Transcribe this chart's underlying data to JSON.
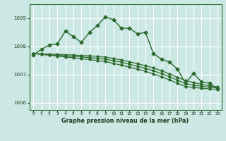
{
  "title": "Graphe pression niveau de la mer (hPa)",
  "bg_color": "#cce8e4",
  "grid_color": "#ffffff",
  "line_color": "#2d6a2d",
  "ylim": [
    1005.75,
    1009.5
  ],
  "yticks": [
    1006,
    1007,
    1008,
    1009
  ],
  "xlim": [
    -0.5,
    23.5
  ],
  "xticks": [
    0,
    1,
    2,
    3,
    4,
    5,
    6,
    7,
    8,
    9,
    10,
    11,
    12,
    13,
    14,
    15,
    16,
    17,
    18,
    19,
    20,
    21,
    22,
    23
  ],
  "series_main": [
    1007.7,
    1007.9,
    1008.05,
    1008.1,
    1008.55,
    1008.35,
    1008.15,
    1008.5,
    1008.75,
    1009.05,
    1008.95,
    1008.65,
    1008.65,
    1008.45,
    1008.5,
    1007.75,
    1007.55,
    1007.45,
    1007.2,
    1006.7,
    1007.05,
    1006.75,
    1006.7,
    1006.5
  ],
  "series_linear1": [
    1007.75,
    1007.72,
    1007.69,
    1007.66,
    1007.63,
    1007.6,
    1007.57,
    1007.54,
    1007.5,
    1007.47,
    1007.4,
    1007.34,
    1007.27,
    1007.2,
    1007.12,
    1007.03,
    1006.93,
    1006.82,
    1006.7,
    1006.58,
    1006.55,
    1006.52,
    1006.5,
    1006.48
  ],
  "series_linear2": [
    1007.75,
    1007.73,
    1007.71,
    1007.69,
    1007.67,
    1007.65,
    1007.63,
    1007.61,
    1007.58,
    1007.55,
    1007.5,
    1007.44,
    1007.37,
    1007.3,
    1007.23,
    1007.14,
    1007.04,
    1006.93,
    1006.81,
    1006.68,
    1006.63,
    1006.59,
    1006.56,
    1006.53
  ],
  "series_linear3": [
    1007.75,
    1007.74,
    1007.73,
    1007.72,
    1007.71,
    1007.7,
    1007.68,
    1007.67,
    1007.65,
    1007.62,
    1007.58,
    1007.52,
    1007.46,
    1007.39,
    1007.32,
    1007.24,
    1007.14,
    1007.03,
    1006.91,
    1006.79,
    1006.72,
    1006.66,
    1006.61,
    1006.57
  ]
}
